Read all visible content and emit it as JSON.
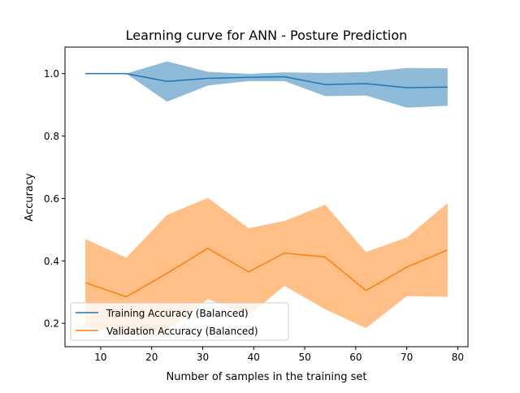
{
  "chart_data": {
    "type": "line",
    "title": "Learning curve for ANN - Posture Prediction",
    "xlabel": "Number of samples in the training set",
    "ylabel": "Accuracy",
    "xlim": [
      3,
      82
    ],
    "ylim": [
      0.125,
      1.085
    ],
    "xticks": [
      10,
      20,
      30,
      40,
      50,
      60,
      70,
      80
    ],
    "yticks": [
      0.2,
      0.4,
      0.6,
      0.8,
      1.0
    ],
    "ytick_labels": [
      "0.2",
      "0.4",
      "0.6",
      "0.8",
      "1.0"
    ],
    "grid": false,
    "legend_position": "lower-left",
    "x": [
      7,
      15,
      23,
      31,
      39,
      46,
      54,
      62,
      70,
      78
    ],
    "series": [
      {
        "name": "Training Accuracy (Balanced)",
        "color": "#1f77b4",
        "fill_color": "#1f77b4",
        "fill_opacity": 0.5,
        "values": [
          1.0,
          1.0,
          0.975,
          0.985,
          0.988,
          0.99,
          0.965,
          0.968,
          0.955,
          0.957
        ],
        "lower": [
          1.0,
          1.0,
          0.91,
          0.962,
          0.976,
          0.976,
          0.928,
          0.93,
          0.891,
          0.897
        ],
        "upper": [
          1.0,
          1.0,
          1.039,
          1.006,
          0.999,
          1.004,
          1.002,
          1.005,
          1.018,
          1.017
        ]
      },
      {
        "name": "Validation Accuracy (Balanced)",
        "color": "#ff7f0e",
        "fill_color": "#ff7f0e",
        "fill_opacity": 0.5,
        "values": [
          0.33,
          0.285,
          0.36,
          0.44,
          0.365,
          0.425,
          0.412,
          0.305,
          0.38,
          0.435
        ],
        "lower": [
          0.19,
          0.165,
          0.175,
          0.278,
          0.225,
          0.32,
          0.245,
          0.185,
          0.287,
          0.285
        ],
        "upper": [
          0.47,
          0.41,
          0.547,
          0.602,
          0.505,
          0.528,
          0.58,
          0.428,
          0.475,
          0.585
        ]
      }
    ]
  }
}
